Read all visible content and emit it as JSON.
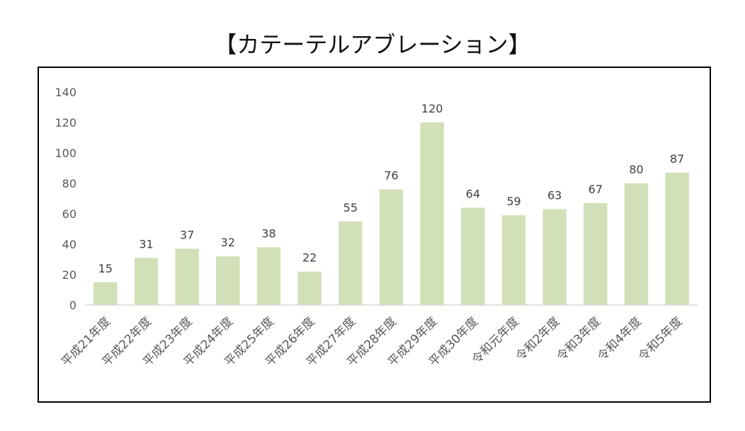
{
  "chart_data": {
    "type": "bar",
    "title": "【カテーテルアブレーション】",
    "categories": [
      "平成21年度",
      "平成22年度",
      "平成23年度",
      "平成24年度",
      "平成25年度",
      "平成26年度",
      "平成27年度",
      "平成28年度",
      "平成29年度",
      "平成30年度",
      "令和元年度",
      "令和2年度",
      "令和3年度",
      "令和4年度",
      "令和5年度"
    ],
    "values": [
      15,
      31,
      37,
      32,
      38,
      22,
      55,
      76,
      120,
      64,
      59,
      63,
      67,
      80,
      87
    ],
    "ylim": [
      0,
      140
    ],
    "yticks": [
      0,
      20,
      40,
      60,
      80,
      100,
      120,
      140
    ],
    "xlabel": "",
    "ylabel": "",
    "grid": false,
    "data_labels": true,
    "bar_color": "#d2e0b8",
    "axis_color": "#d9d9d9"
  }
}
